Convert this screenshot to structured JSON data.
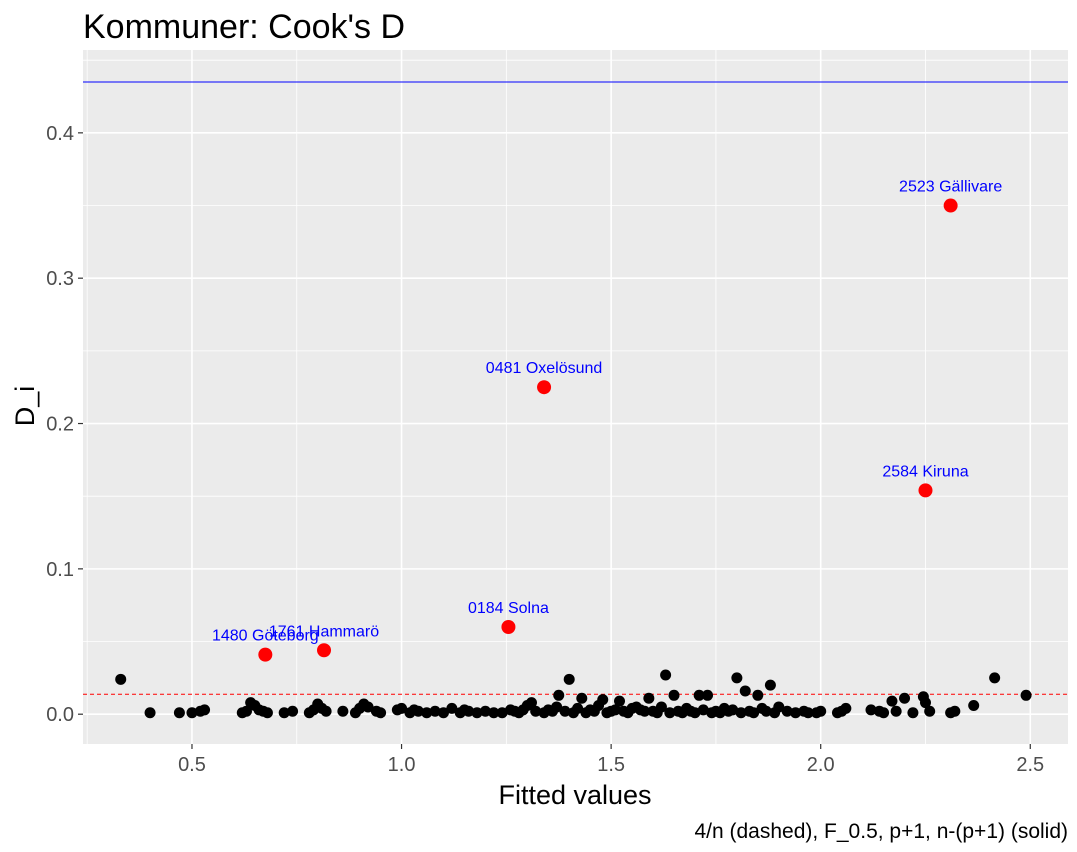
{
  "chart_data": {
    "type": "scatter",
    "title": "Kommuner: Cook's D",
    "xlabel": "Fitted values",
    "ylabel": "D_i",
    "caption": "4/n (dashed), F_0.5, p+1, n-(p+1) (solid)",
    "xlim": [
      0.24,
      2.59
    ],
    "ylim": [
      -0.0205,
      0.457
    ],
    "x_ticks": [
      0.5,
      1.0,
      1.5,
      2.0,
      2.5
    ],
    "x_tick_labels": [
      "0.5",
      "1.0",
      "1.5",
      "2.0",
      "2.5"
    ],
    "y_ticks": [
      0.0,
      0.1,
      0.2,
      0.3,
      0.4
    ],
    "y_tick_labels": [
      "0.0",
      "0.1",
      "0.2",
      "0.3",
      "0.4"
    ],
    "grid": true,
    "colors": {
      "panel": "#ebebeb",
      "grid": "#ffffff",
      "point": "#000000",
      "highlight": "#ff0000",
      "label": "#0000ff",
      "dashed_line": "#ff0000",
      "solid_line": "#0000ff"
    },
    "reference_lines": [
      {
        "style": "dashed",
        "y": 0.0137
      },
      {
        "style": "solid",
        "y": 0.435
      }
    ],
    "highlighted": [
      {
        "label": "2523 Gällivare",
        "x": 2.31,
        "y": 0.35
      },
      {
        "label": "0481 Oxelösund",
        "x": 1.34,
        "y": 0.225
      },
      {
        "label": "2584 Kiruna",
        "x": 2.25,
        "y": 0.154
      },
      {
        "label": "0184 Solna",
        "x": 1.255,
        "y": 0.06
      },
      {
        "label": "1480 Göteborg",
        "x": 0.675,
        "y": 0.041
      },
      {
        "label": "1761 Hammarö",
        "x": 0.815,
        "y": 0.044
      }
    ],
    "points": [
      [
        0.33,
        0.024
      ],
      [
        0.4,
        0.001
      ],
      [
        0.47,
        0.001
      ],
      [
        0.5,
        0.001
      ],
      [
        0.52,
        0.002
      ],
      [
        0.53,
        0.003
      ],
      [
        0.62,
        0.001
      ],
      [
        0.63,
        0.002
      ],
      [
        0.64,
        0.008
      ],
      [
        0.65,
        0.006
      ],
      [
        0.66,
        0.003
      ],
      [
        0.67,
        0.002
      ],
      [
        0.68,
        0.001
      ],
      [
        0.72,
        0.001
      ],
      [
        0.74,
        0.002
      ],
      [
        0.78,
        0.001
      ],
      [
        0.79,
        0.003
      ],
      [
        0.8,
        0.007
      ],
      [
        0.81,
        0.004
      ],
      [
        0.82,
        0.002
      ],
      [
        0.86,
        0.002
      ],
      [
        0.89,
        0.001
      ],
      [
        0.9,
        0.004
      ],
      [
        0.91,
        0.007
      ],
      [
        0.92,
        0.005
      ],
      [
        0.94,
        0.002
      ],
      [
        0.95,
        0.001
      ],
      [
        0.99,
        0.003
      ],
      [
        1.0,
        0.004
      ],
      [
        1.02,
        0.001
      ],
      [
        1.03,
        0.003
      ],
      [
        1.04,
        0.002
      ],
      [
        1.06,
        0.001
      ],
      [
        1.08,
        0.002
      ],
      [
        1.1,
        0.001
      ],
      [
        1.12,
        0.004
      ],
      [
        1.14,
        0.001
      ],
      [
        1.15,
        0.003
      ],
      [
        1.16,
        0.002
      ],
      [
        1.18,
        0.001
      ],
      [
        1.2,
        0.002
      ],
      [
        1.22,
        0.001
      ],
      [
        1.24,
        0.001
      ],
      [
        1.26,
        0.003
      ],
      [
        1.27,
        0.002
      ],
      [
        1.28,
        0.001
      ],
      [
        1.29,
        0.003
      ],
      [
        1.3,
        0.006
      ],
      [
        1.31,
        0.008
      ],
      [
        1.32,
        0.002
      ],
      [
        1.34,
        0.001
      ],
      [
        1.35,
        0.003
      ],
      [
        1.36,
        0.002
      ],
      [
        1.37,
        0.005
      ],
      [
        1.375,
        0.013
      ],
      [
        1.39,
        0.002
      ],
      [
        1.4,
        0.024
      ],
      [
        1.41,
        0.001
      ],
      [
        1.42,
        0.004
      ],
      [
        1.43,
        0.011
      ],
      [
        1.44,
        0.001
      ],
      [
        1.45,
        0.003
      ],
      [
        1.46,
        0.002
      ],
      [
        1.47,
        0.006
      ],
      [
        1.48,
        0.01
      ],
      [
        1.49,
        0.001
      ],
      [
        1.5,
        0.002
      ],
      [
        1.51,
        0.003
      ],
      [
        1.52,
        0.009
      ],
      [
        1.53,
        0.002
      ],
      [
        1.54,
        0.001
      ],
      [
        1.55,
        0.004
      ],
      [
        1.56,
        0.005
      ],
      [
        1.57,
        0.003
      ],
      [
        1.58,
        0.002
      ],
      [
        1.59,
        0.011
      ],
      [
        1.6,
        0.002
      ],
      [
        1.61,
        0.001
      ],
      [
        1.62,
        0.005
      ],
      [
        1.63,
        0.027
      ],
      [
        1.64,
        0.001
      ],
      [
        1.65,
        0.013
      ],
      [
        1.66,
        0.002
      ],
      [
        1.67,
        0.001
      ],
      [
        1.68,
        0.004
      ],
      [
        1.69,
        0.002
      ],
      [
        1.7,
        0.001
      ],
      [
        1.71,
        0.013
      ],
      [
        1.72,
        0.003
      ],
      [
        1.73,
        0.013
      ],
      [
        1.74,
        0.001
      ],
      [
        1.75,
        0.002
      ],
      [
        1.76,
        0.001
      ],
      [
        1.77,
        0.004
      ],
      [
        1.78,
        0.002
      ],
      [
        1.79,
        0.003
      ],
      [
        1.8,
        0.025
      ],
      [
        1.81,
        0.001
      ],
      [
        1.82,
        0.016
      ],
      [
        1.83,
        0.002
      ],
      [
        1.84,
        0.001
      ],
      [
        1.85,
        0.013
      ],
      [
        1.86,
        0.004
      ],
      [
        1.87,
        0.002
      ],
      [
        1.88,
        0.02
      ],
      [
        1.89,
        0.001
      ],
      [
        1.9,
        0.005
      ],
      [
        1.92,
        0.002
      ],
      [
        1.94,
        0.001
      ],
      [
        1.96,
        0.002
      ],
      [
        1.97,
        0.001
      ],
      [
        1.99,
        0.001
      ],
      [
        2.0,
        0.002
      ],
      [
        2.04,
        0.001
      ],
      [
        2.05,
        0.002
      ],
      [
        2.06,
        0.004
      ],
      [
        2.12,
        0.003
      ],
      [
        2.14,
        0.002
      ],
      [
        2.15,
        0.001
      ],
      [
        2.17,
        0.009
      ],
      [
        2.18,
        0.002
      ],
      [
        2.2,
        0.011
      ],
      [
        2.22,
        0.001
      ],
      [
        2.245,
        0.012
      ],
      [
        2.25,
        0.008
      ],
      [
        2.26,
        0.002
      ],
      [
        2.31,
        0.001
      ],
      [
        2.32,
        0.002
      ],
      [
        2.365,
        0.006
      ],
      [
        2.415,
        0.025
      ],
      [
        2.49,
        0.013
      ]
    ]
  }
}
